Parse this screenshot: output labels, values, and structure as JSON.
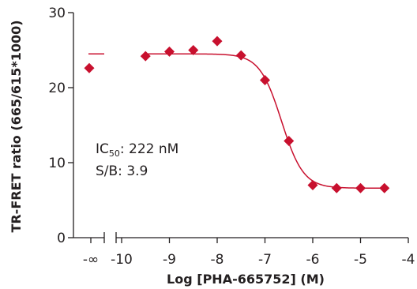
{
  "chart_data": {
    "type": "scatter",
    "xlabel": "Log [PHA-665752] (M)",
    "ylabel": "TR-FRET ratio (665/615*1000)",
    "ylim": [
      0,
      30
    ],
    "xlim": [
      -10,
      -4
    ],
    "y_ticks": [
      "0",
      "10",
      "20",
      "30"
    ],
    "x_ticks": [
      "-10",
      "-9",
      "-8",
      "-7",
      "-6",
      "-5",
      "-4"
    ],
    "neg_inf_label": "-∞",
    "axis_break": true,
    "grid": false,
    "legend": "none",
    "color": "#c8102e",
    "control_point": {
      "x": "-∞",
      "y": 22.6
    },
    "points": [
      {
        "x": -9.5,
        "y": 24.2
      },
      {
        "x": -9.0,
        "y": 24.8
      },
      {
        "x": -8.5,
        "y": 25.0
      },
      {
        "x": -8.0,
        "y": 26.2
      },
      {
        "x": -7.5,
        "y": 24.3
      },
      {
        "x": -7.0,
        "y": 21.0
      },
      {
        "x": -6.5,
        "y": 12.9
      },
      {
        "x": -6.0,
        "y": 7.0
      },
      {
        "x": -5.5,
        "y": 6.6
      },
      {
        "x": -5.0,
        "y": 6.6
      },
      {
        "x": -4.5,
        "y": 6.6
      }
    ],
    "fit": {
      "top": 24.5,
      "bottom": 6.6,
      "log_ic50": -6.654,
      "hill": 1.9,
      "x_start": -9.5,
      "x_end": -4.5
    },
    "annotations": {
      "ic50_prefix": "IC",
      "ic50_sub": "50",
      "ic50_value": ": 222 nM",
      "sb": "S/B: 3.9"
    }
  }
}
